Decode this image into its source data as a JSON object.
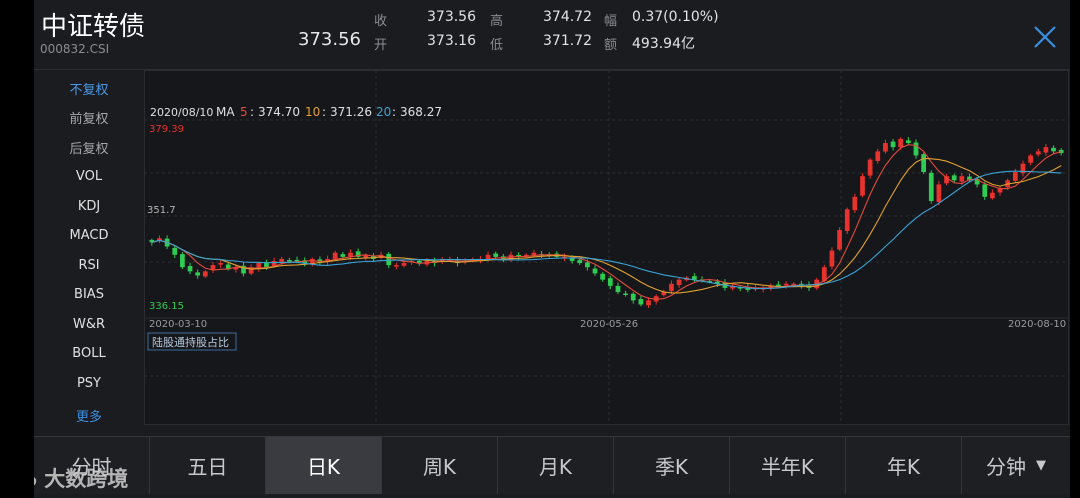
{
  "header": {
    "title": "中证转债",
    "code": "000832.CSI",
    "price": "373.56",
    "close_label": "收",
    "close_value": "373.56",
    "open_label": "开",
    "open_value": "373.16",
    "high_label": "高",
    "high_value": "374.72",
    "low_label": "低",
    "low_value": "371.72",
    "change_label": "幅",
    "change_value": "0.37(0.10%)",
    "amount_label": "额",
    "amount_value": "493.94亿"
  },
  "sidebar": {
    "items": [
      {
        "label": "不复权"
      },
      {
        "label": "前复权"
      },
      {
        "label": "后复权"
      },
      {
        "label": "VOL"
      },
      {
        "label": "KDJ"
      },
      {
        "label": "MACD"
      },
      {
        "label": "RSI"
      },
      {
        "label": "BIAS"
      },
      {
        "label": "W&R"
      },
      {
        "label": "BOLL"
      },
      {
        "label": "PSY"
      },
      {
        "label": "更多"
      }
    ]
  },
  "chart_info": {
    "date": "2020/08/10",
    "ma_label": "MA",
    "ma5_label": "5",
    "ma5_value": "374.70",
    "ma10_label": "10",
    "ma10_value": "371.26",
    "ma20_label": "20",
    "ma20_value": "368.27",
    "max_label": "379.39",
    "min_label": "336.15",
    "open_marker": "351.7",
    "x_start": "2020-03-10",
    "x_mid": "2020-05-26",
    "x_end": "2020-08-10",
    "sub_indicator": "陆股通持股占比",
    "colors": {
      "up": "#e8322d",
      "down": "#2ecc52",
      "ma5": "#e44a3c",
      "ma10": "#e0a030",
      "ma20": "#3aa3d8"
    }
  },
  "chart_data": {
    "type": "candlestick",
    "x_labels": [
      "2020-03-10",
      "2020-05-26",
      "2020-08-10"
    ],
    "ylim": [
      336.15,
      379.39
    ],
    "series": [
      {
        "name": "MA5",
        "values": [
          374.7
        ]
      },
      {
        "name": "MA10",
        "values": [
          371.26
        ]
      },
      {
        "name": "MA20",
        "values": [
          368.27
        ]
      }
    ],
    "closes": [
      352.0,
      353.0,
      351.0,
      349.0,
      346.0,
      345.0,
      344.0,
      345.0,
      346.5,
      347.0,
      345.5,
      346.0,
      344.5,
      346.0,
      347.0,
      346.0,
      347.5,
      348.0,
      347.5,
      347.5,
      347.0,
      348.0,
      347.0,
      348.0,
      349.5,
      348.5,
      349.5,
      348.5,
      349.0,
      348.0,
      349.0,
      346.5,
      346.5,
      347.0,
      347.5,
      347.0,
      347.5,
      347.0,
      348.0,
      348.0,
      347.0,
      347.5,
      348.0,
      348.0,
      349.0,
      348.5,
      348.0,
      349.0,
      348.5,
      349.0,
      349.5,
      349.0,
      349.0,
      348.5,
      348.5,
      347.5,
      347.0,
      346.0,
      344.5,
      343.0,
      341.5,
      340.0,
      339.5,
      338.0,
      337.0,
      338.0,
      339.0,
      340.0,
      342.0,
      343.0,
      343.5,
      343.0,
      343.0,
      342.5,
      342.0,
      341.0,
      341.5,
      341.0,
      340.5,
      341.0,
      341.0,
      341.5,
      341.5,
      342.0,
      342.0,
      341.5,
      341.0,
      343.0,
      346.0,
      350.0,
      355.0,
      360.0,
      363.0,
      368.0,
      372.0,
      374.0,
      376.0,
      375.0,
      377.0,
      376.0,
      373.0,
      369.0,
      362.0,
      366.0,
      368.0,
      367.0,
      368.0,
      367.0,
      366.0,
      363.0,
      364.0,
      365.0,
      367.0,
      369.0,
      371.0,
      373.0,
      374.0,
      375.0,
      374.0,
      373.56
    ]
  },
  "tabs": [
    {
      "label": "分时"
    },
    {
      "label": "五日"
    },
    {
      "label": "日K"
    },
    {
      "label": "周K"
    },
    {
      "label": "月K"
    },
    {
      "label": "季K"
    },
    {
      "label": "半年K"
    },
    {
      "label": "年K"
    },
    {
      "label": "分钟"
    }
  ],
  "watermark": "大数跨境"
}
